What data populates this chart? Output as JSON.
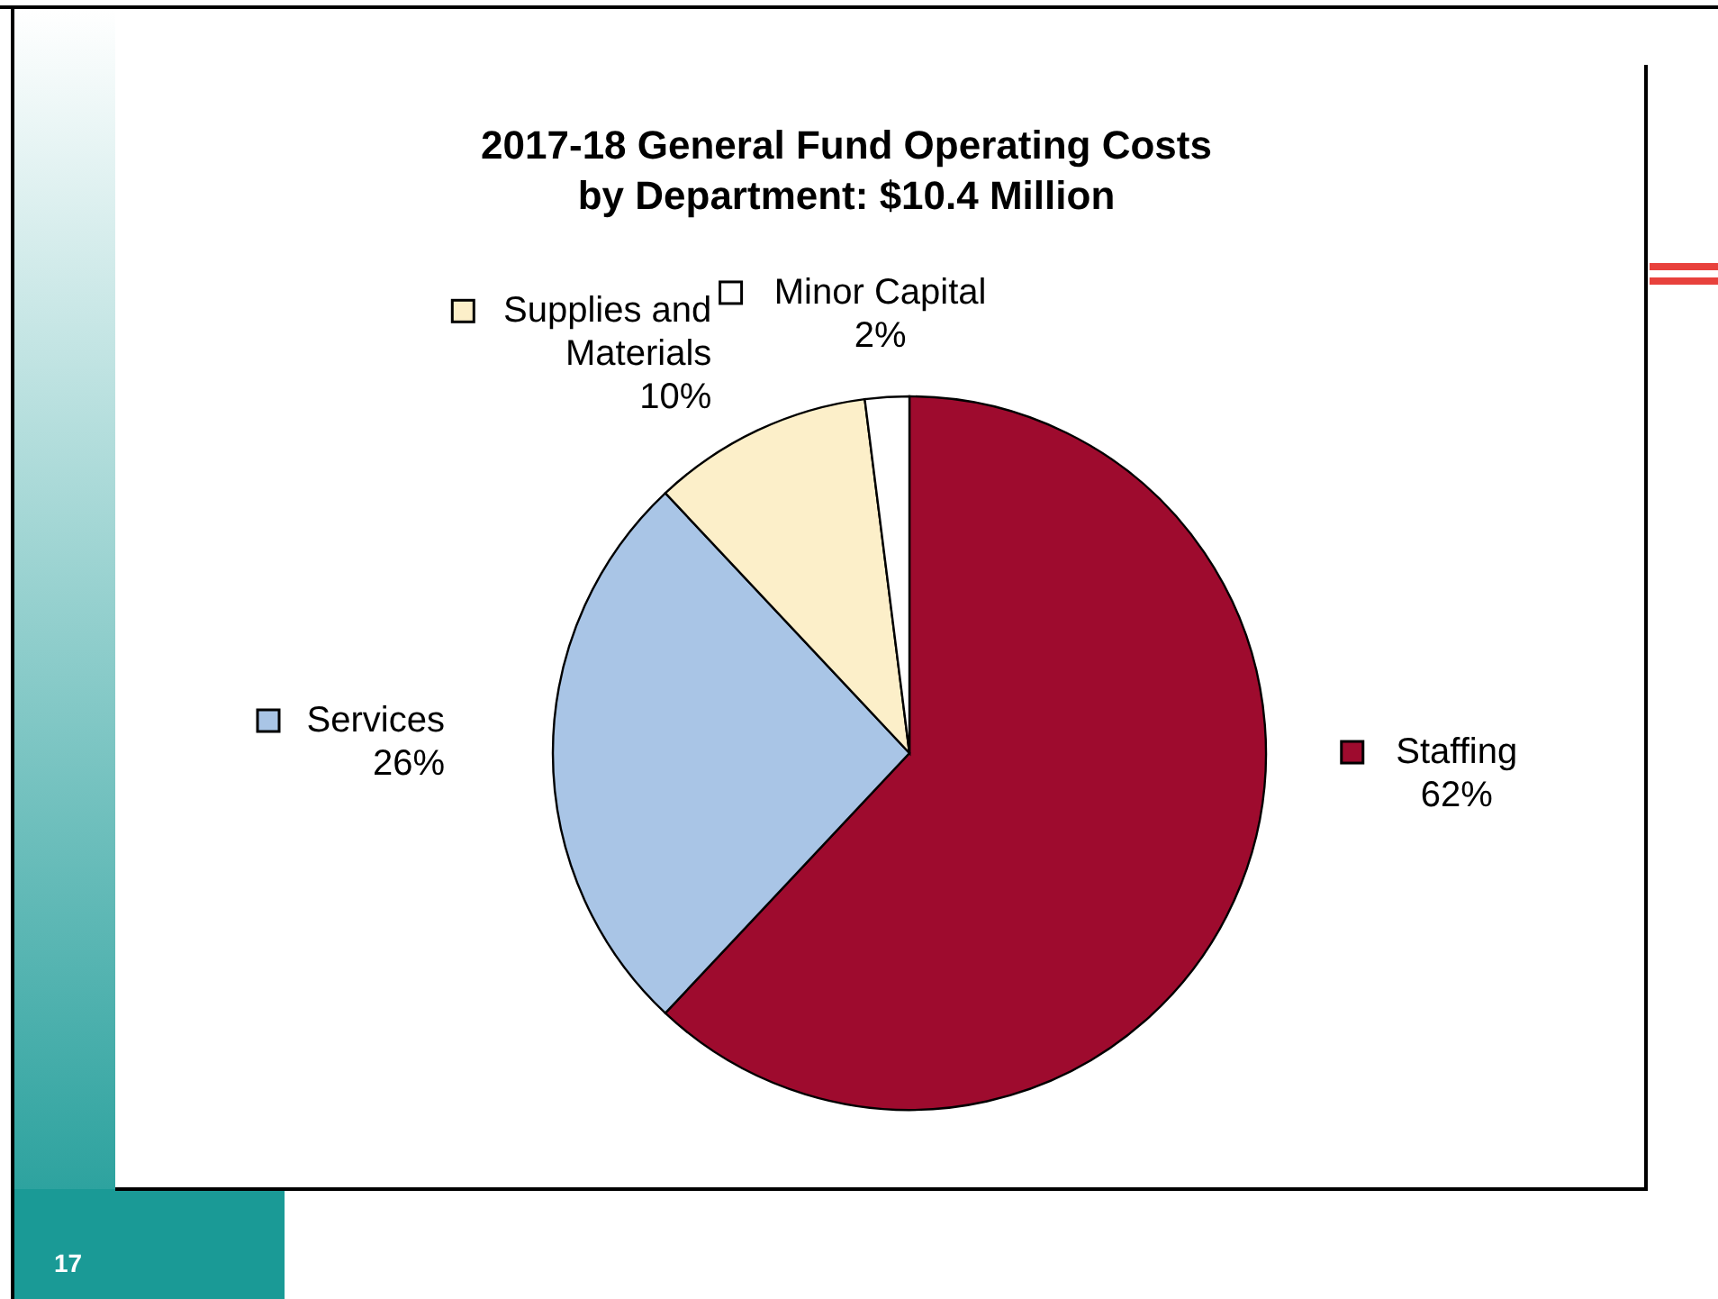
{
  "chart_data": {
    "type": "pie",
    "title": "2017-18 General Fund Operating Costs\nby Department: $10.4 Million",
    "categories": [
      "Staffing",
      "Services",
      "Supplies and Materials",
      "Minor Capital"
    ],
    "values": [
      62,
      26,
      10,
      2
    ],
    "colors": [
      "#9e0b2e",
      "#a9c5e6",
      "#fcefc9",
      "#ffffff"
    ],
    "value_labels": [
      "62%",
      "26%",
      "10%",
      "2%"
    ],
    "legend": "top",
    "annotations": [
      "17"
    ]
  }
}
